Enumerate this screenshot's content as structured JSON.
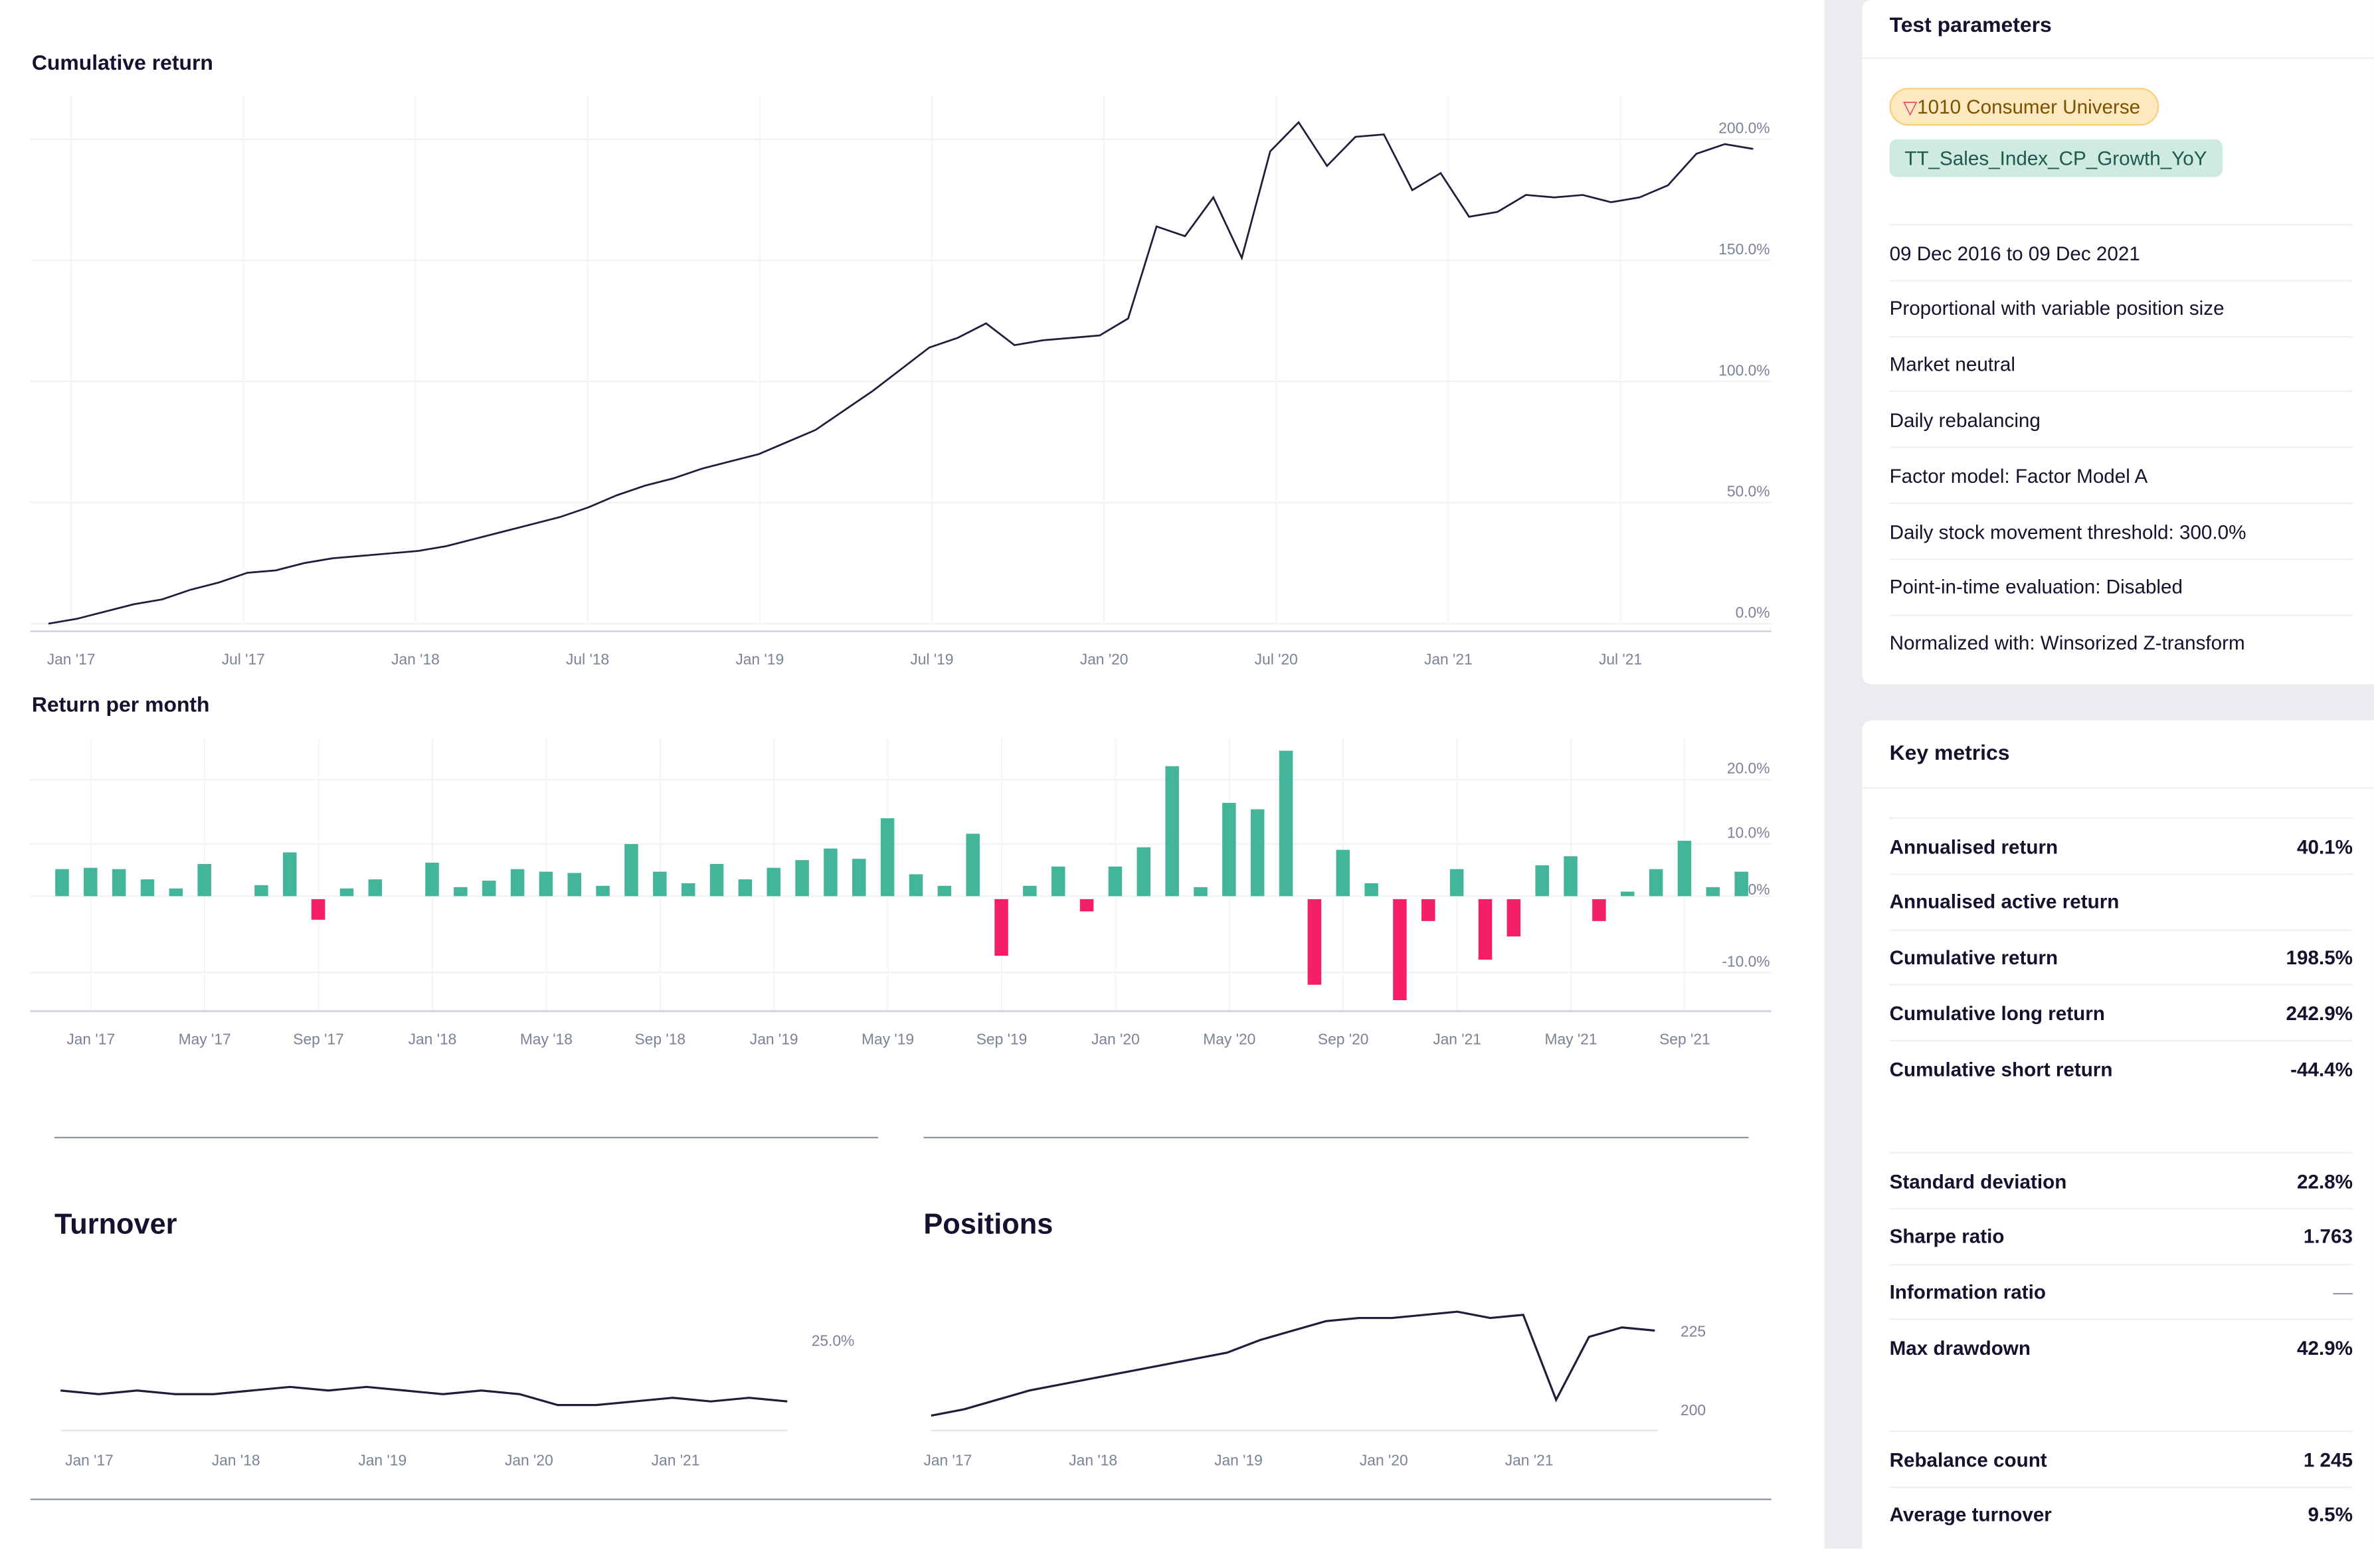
{
  "main": {
    "cumulative_title": "Cumulative return",
    "monthly_title": "Return per month",
    "turnover_title": "Turnover",
    "positions_title": "Positions"
  },
  "colors": {
    "line": "#1f1d3a",
    "positive": "#43b59a",
    "negative": "#f41f64",
    "grid": "#f1f2f5",
    "tick": "#7b8197"
  },
  "chart_data": [
    {
      "type": "line",
      "title": "Cumulative return",
      "ylim": [
        0,
        220
      ],
      "yticks": [
        "0.0%",
        "50.0%",
        "100.0%",
        "150.0%",
        "200.0%"
      ],
      "ytick_values": [
        0,
        50,
        100,
        150,
        200
      ],
      "xticks": [
        "Jan '17",
        "Jul '17",
        "Jan '18",
        "Jul '18",
        "Jan '19",
        "Jul '19",
        "Jan '20",
        "Jul '20",
        "Jan '21",
        "Jul '21"
      ],
      "x_start": "Dec 2016",
      "values": [
        0,
        2,
        5,
        8,
        10,
        14,
        17,
        21,
        22,
        25,
        27,
        28,
        29,
        30,
        32,
        35,
        38,
        41,
        44,
        48,
        53,
        57,
        60,
        64,
        67,
        70,
        75,
        80,
        88,
        96,
        105,
        114,
        118,
        124,
        115,
        117,
        118,
        119,
        126,
        164,
        160,
        176,
        151,
        195,
        207,
        189,
        201,
        202,
        179,
        186,
        168,
        170,
        177,
        176,
        177,
        174,
        176,
        181,
        194,
        198,
        196
      ]
    },
    {
      "type": "bar",
      "title": "Return per month",
      "ylim": [
        -18,
        23
      ],
      "yticks": [
        "-10.0%",
        "0%",
        "10.0%",
        "20.0%"
      ],
      "ytick_values": [
        -10,
        0,
        10,
        20
      ],
      "xticks": [
        "Jan '17",
        "May '17",
        "Sep '17",
        "Jan '18",
        "May '18",
        "Sep '18",
        "Jan '19",
        "May '19",
        "Sep '19",
        "Jan '20",
        "May '20",
        "Sep '20",
        "Jan '21",
        "May '21",
        "Sep '21"
      ],
      "x_start": "Dec 2016",
      "values": [
        4.2,
        4.4,
        4.2,
        2.6,
        1.2,
        5.0,
        0,
        1.7,
        6.8,
        -3.2,
        1.2,
        2.6,
        0,
        5.2,
        1.4,
        2.4,
        4.2,
        3.8,
        3.6,
        1.6,
        8.1,
        3.8,
        2.0,
        5.0,
        2.6,
        4.4,
        5.6,
        7.4,
        5.8,
        12.1,
        3.4,
        1.6,
        9.7,
        -8.8,
        1.6,
        4.6,
        -1.9,
        4.6,
        7.6,
        20.2,
        1.4,
        14.5,
        13.5,
        22.6,
        -13.3,
        7.2,
        2.0,
        -15.7,
        -3.4,
        4.2,
        -9.4,
        -5.8,
        4.8,
        6.2,
        -3.4,
        0.7,
        4.2,
        8.6,
        1.4,
        3.8
      ]
    },
    {
      "type": "line",
      "title": "Turnover",
      "ylim": [
        0,
        30
      ],
      "yticks": [
        "25.0%"
      ],
      "ytick_values": [
        25
      ],
      "xticks": [
        "Jan '17",
        "Jan '18",
        "Jan '19",
        "Jan '20",
        "Jan '21"
      ],
      "values": [
        11,
        10,
        11,
        10,
        10,
        11,
        12,
        11,
        12,
        11,
        10,
        11,
        10,
        7,
        7,
        8,
        9,
        8,
        9,
        8
      ]
    },
    {
      "type": "line",
      "title": "Positions",
      "ylim": [
        195,
        235
      ],
      "yticks": [
        "200",
        "225"
      ],
      "ytick_values": [
        200,
        225
      ],
      "xticks": [
        "Jan '17",
        "Jan '18",
        "Jan '19",
        "Jan '20",
        "Jan '21"
      ],
      "values": [
        198,
        200,
        203,
        206,
        208,
        210,
        212,
        214,
        216,
        218,
        222,
        225,
        228,
        229,
        229,
        230,
        231,
        229,
        230,
        203,
        223,
        226,
        225
      ]
    }
  ],
  "test_parameters": {
    "title": "Test parameters",
    "universe_tag": "1010 Consumer Universe",
    "factor_tag": "TT_Sales_Index_CP_Growth_YoY",
    "items": [
      "09 Dec 2016 to 09 Dec 2021",
      "Proportional with variable position size",
      "Market neutral",
      "Daily rebalancing",
      "Factor model: Factor Model A",
      "Daily stock movement threshold: 300.0%",
      "Point-in-time evaluation: Disabled",
      "Normalized with: Winsorized Z-transform"
    ]
  },
  "key_metrics": {
    "title": "Key metrics",
    "groups": [
      [
        {
          "label": "Annualised return",
          "value": "40.1%"
        },
        {
          "label": "Annualised active return",
          "value": ""
        },
        {
          "label": "Cumulative return",
          "value": "198.5%"
        },
        {
          "label": "Cumulative long return",
          "value": "242.9%"
        },
        {
          "label": "Cumulative short return",
          "value": "-44.4%"
        }
      ],
      [
        {
          "label": "Standard deviation",
          "value": "22.8%"
        },
        {
          "label": "Sharpe ratio",
          "value": "1.763"
        },
        {
          "label": "Information ratio",
          "value": "—"
        },
        {
          "label": "Max drawdown",
          "value": "42.9%"
        }
      ],
      [
        {
          "label": "Rebalance count",
          "value": "1 245"
        },
        {
          "label": "Average turnover",
          "value": "9.5%"
        }
      ]
    ]
  }
}
